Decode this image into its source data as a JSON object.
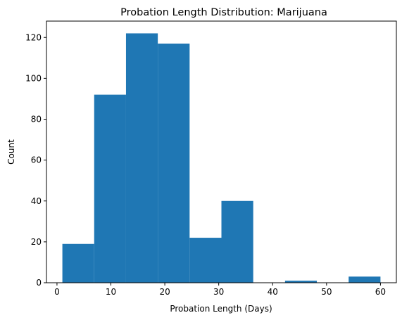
{
  "chart_data": {
    "type": "bar",
    "title": "Probation Length Distribution: Marijuana",
    "xlabel": "Probation Length (Days)",
    "ylabel": "Count",
    "xlim": [
      -1.95,
      62.95
    ],
    "ylim": [
      0,
      128
    ],
    "x_ticks": [
      0,
      10,
      20,
      30,
      40,
      50,
      60
    ],
    "y_ticks": [
      0,
      20,
      40,
      60,
      80,
      100,
      120
    ],
    "bin_edges": [
      1,
      6.9,
      12.8,
      18.7,
      24.6,
      30.5,
      36.4,
      42.3,
      48.2,
      54.1,
      60
    ],
    "values": [
      19,
      92,
      122,
      117,
      22,
      40,
      0,
      1,
      0,
      3
    ],
    "bar_color": "#1f77b4",
    "grid": false,
    "legend": "none"
  }
}
